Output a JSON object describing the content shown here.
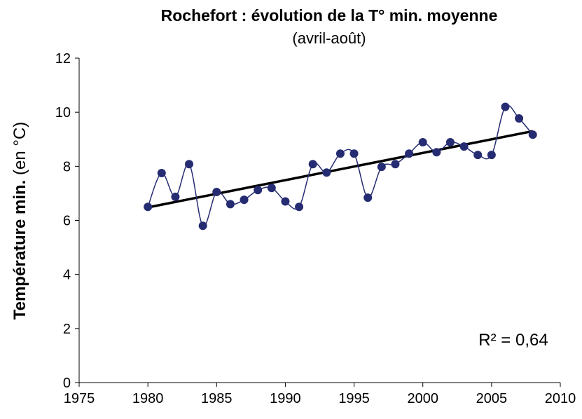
{
  "chart_data": {
    "type": "line",
    "title": "Rochefort : évolution de la T° min. moyenne",
    "subtitle": "(avril-août)",
    "ylabel": "Température min.",
    "ylabel_unit": "(en °C)",
    "annotation": "R² = 0,64",
    "x": [
      1980,
      1981,
      1982,
      1983,
      1984,
      1985,
      1986,
      1987,
      1988,
      1989,
      1990,
      1991,
      1992,
      1993,
      1994,
      1995,
      1996,
      1997,
      1998,
      1999,
      2000,
      2001,
      2002,
      2003,
      2004,
      2005,
      2006,
      2007,
      2008
    ],
    "series": [
      {
        "color": "#262c72",
        "values": [
          6.5,
          7.75,
          6.87,
          8.08,
          5.8,
          7.05,
          6.6,
          6.76,
          7.12,
          7.2,
          6.7,
          6.5,
          8.08,
          7.77,
          8.47,
          8.47,
          6.84,
          7.98,
          8.08,
          8.47,
          8.89,
          8.52,
          8.89,
          8.73,
          8.42,
          8.42,
          10.2,
          9.77,
          9.17
        ]
      }
    ],
    "trendline": {
      "color": "#000000",
      "x": [
        1980,
        2008
      ],
      "values": [
        6.48,
        9.3
      ]
    },
    "xlim": [
      1975,
      2010
    ],
    "xticks": [
      1975,
      1980,
      1985,
      1990,
      1995,
      2000,
      2005,
      2010
    ],
    "ylim": [
      0,
      12
    ],
    "yticks": [
      0,
      2,
      4,
      6,
      8,
      10,
      12
    ]
  }
}
